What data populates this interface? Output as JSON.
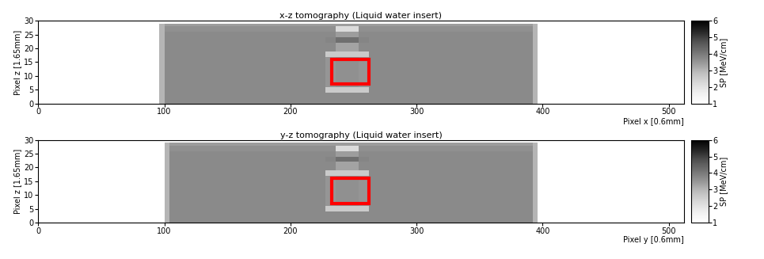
{
  "chart_data": [
    {
      "type": "heatmap",
      "title": "x-z tomography (Liquid water insert)",
      "x_label": "Pixel x [0.6mm]",
      "y_label": "Pixel z [1.65mm]",
      "xlim": [
        0,
        512
      ],
      "ylim": [
        0,
        30
      ],
      "xticks": [
        0,
        100,
        200,
        300,
        400,
        500
      ],
      "yticks": [
        0,
        5,
        10,
        15,
        20,
        25,
        30
      ],
      "x_edges": [
        96,
        100,
        228,
        236,
        254,
        262,
        392,
        396
      ],
      "y_edges": [
        0,
        4,
        6,
        17,
        19,
        22,
        24,
        26,
        28,
        29
      ],
      "cells": [
        [
          3.0,
          3.7,
          3.7,
          3.7,
          3.7,
          3.7,
          3.0
        ],
        [
          3.0,
          3.7,
          2.6,
          2.6,
          2.6,
          3.7,
          3.0
        ],
        [
          3.0,
          3.7,
          3.5,
          3.6,
          3.5,
          3.7,
          3.0
        ],
        [
          3.0,
          3.7,
          2.6,
          2.6,
          2.6,
          3.7,
          3.0
        ],
        [
          3.0,
          3.7,
          3.7,
          3.3,
          3.7,
          3.7,
          3.0
        ],
        [
          3.0,
          3.7,
          3.8,
          4.2,
          3.8,
          3.7,
          3.0
        ],
        [
          3.0,
          3.7,
          3.7,
          3.4,
          3.7,
          3.7,
          3.0
        ],
        [
          3.0,
          3.6,
          3.6,
          2.2,
          3.6,
          3.6,
          3.0
        ],
        [
          3.0,
          3.4,
          3.4,
          3.4,
          3.4,
          3.4,
          3.0
        ]
      ],
      "colorbar": {
        "label": "SP [MeV/cm]",
        "range": [
          1,
          6
        ],
        "ticks": [
          1,
          2,
          3,
          4,
          5,
          6
        ]
      },
      "highlight": {
        "x": [
          233,
          262
        ],
        "y": [
          7,
          16
        ],
        "color": "#ff0000"
      }
    },
    {
      "type": "heatmap",
      "title": "y-z tomography (Liquid water insert)",
      "x_label": "Pixel y [0.6mm]",
      "y_label": "Pixel z [1.65mm]",
      "xlim": [
        0,
        512
      ],
      "ylim": [
        0,
        30
      ],
      "xticks": [
        0,
        100,
        200,
        300,
        400,
        500
      ],
      "yticks": [
        0,
        5,
        10,
        15,
        20,
        25,
        30
      ],
      "x_edges": [
        100,
        104,
        228,
        236,
        254,
        262,
        392,
        396
      ],
      "y_edges": [
        0,
        4,
        6,
        17,
        19,
        22,
        24,
        26,
        28,
        29
      ],
      "cells": [
        [
          3.0,
          3.7,
          3.7,
          3.7,
          3.7,
          3.7,
          3.0
        ],
        [
          3.0,
          3.7,
          2.6,
          2.6,
          2.6,
          3.7,
          3.0
        ],
        [
          3.0,
          3.7,
          3.5,
          3.6,
          3.5,
          3.7,
          3.0
        ],
        [
          3.0,
          3.7,
          2.6,
          2.6,
          2.6,
          3.7,
          3.0
        ],
        [
          3.0,
          3.7,
          3.7,
          3.3,
          3.7,
          3.7,
          3.0
        ],
        [
          3.0,
          3.7,
          3.8,
          4.2,
          3.8,
          3.7,
          3.0
        ],
        [
          3.0,
          3.7,
          3.7,
          3.4,
          3.7,
          3.7,
          3.0
        ],
        [
          3.0,
          3.6,
          3.6,
          2.2,
          3.6,
          3.6,
          3.0
        ],
        [
          3.0,
          3.4,
          3.4,
          3.4,
          3.4,
          3.4,
          3.0
        ]
      ],
      "colorbar": {
        "label": "SP [MeV/cm]",
        "range": [
          1,
          6
        ],
        "ticks": [
          1,
          2,
          3,
          4,
          5,
          6
        ]
      },
      "highlight": {
        "x": [
          233,
          262
        ],
        "y": [
          7,
          16
        ],
        "color": "#ff0000"
      }
    }
  ]
}
